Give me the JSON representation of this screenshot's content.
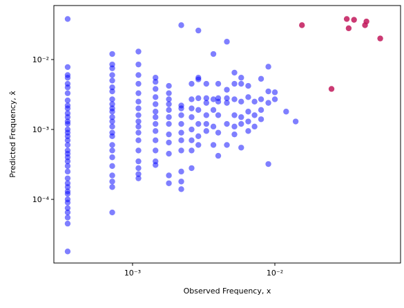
{
  "chart_data": {
    "type": "scatter",
    "x_label": "Observed Frequency, x",
    "y_label": "Predicted Frequency, x̂",
    "log_x": true,
    "log_y": true,
    "xlim": [
      0.00028,
      0.0764
    ],
    "ylim": [
      1.23e-05,
      0.0592
    ],
    "xticks": [
      {
        "value": 0.001,
        "label": "10⁻³"
      },
      {
        "value": 0.01,
        "label": "10⁻²"
      }
    ],
    "yticks": [
      {
        "value": 0.0001,
        "label": "10⁻⁴"
      },
      {
        "value": 0.001,
        "label": "10⁻³"
      },
      {
        "value": 0.01,
        "label": "10⁻²"
      }
    ],
    "series": [
      {
        "color": "#0000ff",
        "opacity": 0.5,
        "x": [
          0.00035,
          0.00035,
          0.00035,
          0.00035,
          0.00035,
          0.00035,
          0.00035,
          0.00035,
          0.00035,
          0.00035,
          0.00035,
          0.00035,
          0.00035,
          0.00035,
          0.00035,
          0.00035,
          0.00035,
          0.00035,
          0.00035,
          0.00035,
          0.00035,
          0.00035,
          0.00035,
          0.00035,
          0.00035,
          0.00035,
          0.00035,
          0.00035,
          0.00035,
          0.00035,
          0.00035,
          0.00035,
          0.00035,
          0.00035,
          0.00035,
          0.00035,
          0.00035,
          0.00072,
          0.00072,
          0.00072,
          0.00072,
          0.00072,
          0.00072,
          0.00072,
          0.00072,
          0.00072,
          0.00072,
          0.00072,
          0.00072,
          0.00072,
          0.00072,
          0.00072,
          0.00072,
          0.00072,
          0.00072,
          0.00072,
          0.00072,
          0.00072,
          0.00072,
          0.00072,
          0.00072,
          0.0011,
          0.0011,
          0.0011,
          0.0011,
          0.0011,
          0.0011,
          0.0011,
          0.0011,
          0.0011,
          0.0011,
          0.0011,
          0.0011,
          0.0011,
          0.0011,
          0.0011,
          0.0011,
          0.0011,
          0.00145,
          0.00145,
          0.00145,
          0.00145,
          0.00145,
          0.00145,
          0.00145,
          0.00145,
          0.00145,
          0.00145,
          0.00145,
          0.00145,
          0.00145,
          0.0018,
          0.0018,
          0.0018,
          0.0018,
          0.0018,
          0.0018,
          0.0018,
          0.0018,
          0.0018,
          0.0018,
          0.0018,
          0.0018,
          0.0022,
          0.0022,
          0.0022,
          0.0022,
          0.0022,
          0.0022,
          0.0022,
          0.0022,
          0.0022,
          0.0022,
          0.0022,
          0.0026,
          0.0026,
          0.0026,
          0.0026,
          0.0026,
          0.0026,
          0.0026,
          0.0026,
          0.0029,
          0.0029,
          0.0029,
          0.0029,
          0.0029,
          0.0029,
          0.0029,
          0.0029,
          0.0033,
          0.0033,
          0.0033,
          0.0033,
          0.0033,
          0.0033,
          0.0037,
          0.0037,
          0.0037,
          0.0037,
          0.0037,
          0.004,
          0.004,
          0.004,
          0.004,
          0.004,
          0.004,
          0.0046,
          0.0046,
          0.0046,
          0.0046,
          0.0046,
          0.0046,
          0.0052,
          0.0052,
          0.0052,
          0.0052,
          0.0052,
          0.0052,
          0.0058,
          0.0058,
          0.0058,
          0.0058,
          0.0058,
          0.0058,
          0.0065,
          0.0065,
          0.0065,
          0.0065,
          0.0065,
          0.0072,
          0.0072,
          0.0072,
          0.008,
          0.008,
          0.008,
          0.008,
          0.009,
          0.009,
          0.009,
          0.009,
          0.01,
          0.01,
          0.012,
          0.014
        ],
        "values": [
          0.038,
          0.0078,
          0.006,
          0.0055,
          0.0045,
          0.004,
          0.0033,
          0.0026,
          0.0022,
          0.002,
          0.0017,
          0.0015,
          0.0013,
          0.0012,
          0.001,
          0.0009,
          0.0008,
          0.0007,
          0.0006,
          0.0005,
          0.00045,
          0.0004,
          0.00035,
          0.0003,
          0.00025,
          0.0002,
          0.00017,
          0.00015,
          0.00013,
          0.00012,
          0.0001,
          9e-05,
          7.5e-05,
          6.5e-05,
          5.5e-05,
          4.5e-05,
          1.8e-05,
          0.012,
          0.0085,
          0.0075,
          0.006,
          0.005,
          0.004,
          0.0035,
          0.0027,
          0.0023,
          0.002,
          0.0018,
          0.0015,
          0.0013,
          0.0011,
          0.0009,
          0.0008,
          0.0006,
          0.0005,
          0.0004,
          0.0003,
          0.00022,
          0.00018,
          0.00015,
          6.5e-05,
          0.013,
          0.0085,
          0.006,
          0.0045,
          0.0033,
          0.0025,
          0.002,
          0.0016,
          0.0013,
          0.0011,
          0.0009,
          0.0007,
          0.0005,
          0.00035,
          0.00028,
          0.00023,
          0.0002,
          0.0055,
          0.0048,
          0.0038,
          0.0029,
          0.0023,
          0.0018,
          0.0015,
          0.0012,
          0.00095,
          0.0007,
          0.0005,
          0.00035,
          0.00031,
          0.0042,
          0.0033,
          0.0027,
          0.0023,
          0.0019,
          0.0015,
          0.0012,
          0.00085,
          0.00065,
          0.00045,
          0.00022,
          0.00017,
          0.031,
          0.0022,
          0.002,
          0.0016,
          0.0012,
          0.0009,
          0.0007,
          0.0005,
          0.00025,
          0.00018,
          0.00014,
          0.0045,
          0.0027,
          0.002,
          0.0015,
          0.001,
          0.0007,
          0.0005,
          0.00028,
          0.026,
          0.0055,
          0.0052,
          0.0028,
          0.0019,
          0.0012,
          0.0008,
          0.0006,
          0.0045,
          0.0028,
          0.0024,
          0.0016,
          0.0012,
          0.00095,
          0.012,
          0.0027,
          0.0019,
          0.0011,
          0.0006,
          0.0045,
          0.0028,
          0.0025,
          0.0016,
          0.0009,
          0.00042,
          0.018,
          0.0037,
          0.0028,
          0.0024,
          0.0012,
          0.0006,
          0.0065,
          0.0045,
          0.0027,
          0.0016,
          0.0011,
          0.00085,
          0.0055,
          0.0045,
          0.0025,
          0.0015,
          0.0012,
          0.00055,
          0.0042,
          0.0029,
          0.0018,
          0.0013,
          0.00095,
          0.0025,
          0.0016,
          0.0011,
          0.0053,
          0.0027,
          0.0019,
          0.0014,
          0.0079,
          0.0035,
          0.0024,
          0.00032,
          0.0034,
          0.0027,
          0.0018,
          0.0013
        ]
      },
      {
        "color": "#c2185b",
        "opacity": 0.85,
        "x": [
          0.0155,
          0.025,
          0.032,
          0.033,
          0.036,
          0.043,
          0.044,
          0.055
        ],
        "values": [
          0.031,
          0.0038,
          0.038,
          0.028,
          0.037,
          0.031,
          0.035,
          0.02
        ]
      }
    ]
  }
}
